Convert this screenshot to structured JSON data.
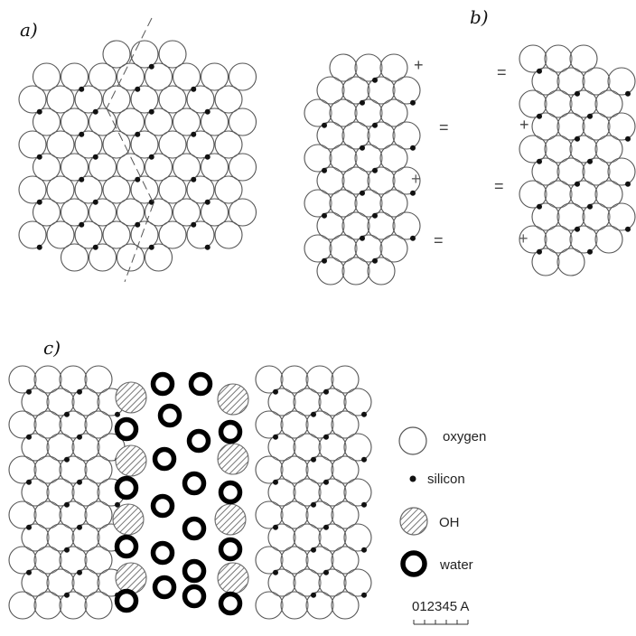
{
  "panels": {
    "a": {
      "label": "a)"
    },
    "b": {
      "label": "b)",
      "signs": [
        "+",
        "=",
        "+",
        "=",
        "=",
        "+",
        "=",
        "+"
      ]
    },
    "c": {
      "label": "c)"
    }
  },
  "legend": {
    "oxygen": "oxygen",
    "silicon": "silicon",
    "oh": "OH",
    "water": "water",
    "scale": "012345 A"
  },
  "colors": {
    "line": "#555555",
    "dot": "#111111",
    "water": "#000000",
    "hatch": "#777777"
  }
}
